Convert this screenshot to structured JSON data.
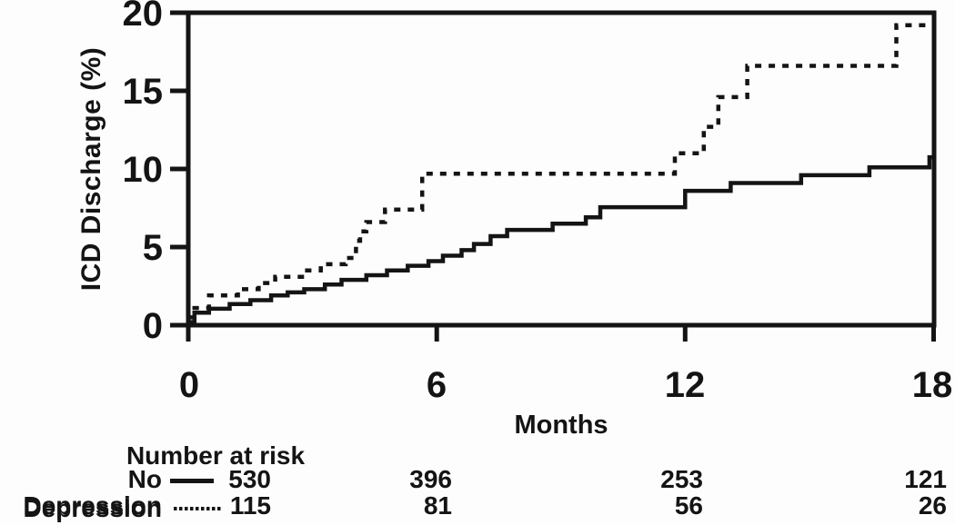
{
  "figure": {
    "background": "#fdfdfd",
    "ink_color": "#141414"
  },
  "chart_data": {
    "type": "line",
    "subtype": "step-function-cumulative-incidence",
    "title": "",
    "xlabel": "Months",
    "ylabel": "ICD Discharge (%)",
    "xlim": [
      0,
      18
    ],
    "ylim": [
      0,
      20
    ],
    "xticks": [
      "0",
      "6",
      "12",
      "18"
    ],
    "yticks": [
      "0",
      "5",
      "10",
      "15",
      "20"
    ],
    "grid": false,
    "legend_position": "below-left (in risk table)",
    "series": [
      {
        "name": "No Depression",
        "line_style": "solid",
        "color": "#141414",
        "points_month_pct": [
          [
            0,
            0.2
          ],
          [
            0.15,
            0.8
          ],
          [
            0.5,
            1.05
          ],
          [
            1,
            1.35
          ],
          [
            1.5,
            1.6
          ],
          [
            2,
            1.9
          ],
          [
            2.4,
            2.1
          ],
          [
            2.8,
            2.3
          ],
          [
            3.3,
            2.6
          ],
          [
            3.7,
            2.9
          ],
          [
            4.3,
            3.2
          ],
          [
            4.8,
            3.5
          ],
          [
            5.3,
            3.8
          ],
          [
            5.8,
            4.1
          ],
          [
            6.15,
            4.45
          ],
          [
            6.6,
            4.8
          ],
          [
            6.9,
            5.2
          ],
          [
            7.3,
            5.7
          ],
          [
            7.7,
            6.1
          ],
          [
            8.8,
            6.5
          ],
          [
            9.6,
            6.9
          ],
          [
            9.95,
            7.55
          ],
          [
            12,
            8.6
          ],
          [
            13.1,
            9.1
          ],
          [
            14.8,
            9.6
          ],
          [
            16.45,
            10.1
          ],
          [
            17.9,
            10.75
          ],
          [
            18,
            10.75
          ]
        ]
      },
      {
        "name": "Depression",
        "line_style": "dotted",
        "color": "#141414",
        "points_month_pct": [
          [
            0,
            0.5
          ],
          [
            0.15,
            1.1
          ],
          [
            0.5,
            1.9
          ],
          [
            1.2,
            2.3
          ],
          [
            1.7,
            2.7
          ],
          [
            2.1,
            3.1
          ],
          [
            2.8,
            3.5
          ],
          [
            3.2,
            3.9
          ],
          [
            3.8,
            4.3
          ],
          [
            4.05,
            5.4
          ],
          [
            4.15,
            6.0
          ],
          [
            4.3,
            6.6
          ],
          [
            4.75,
            7.4
          ],
          [
            5.65,
            9.7
          ],
          [
            11.75,
            11.0
          ],
          [
            12.45,
            12.7
          ],
          [
            12.8,
            14.6
          ],
          [
            13.5,
            16.6
          ],
          [
            17.1,
            19.2
          ],
          [
            17.8,
            19.2
          ]
        ]
      }
    ]
  },
  "risk_table": {
    "heading": "Number at risk",
    "timepoints_months": [
      "0",
      "6",
      "12",
      "18"
    ],
    "rows": [
      {
        "label": "No Depression",
        "marker": "solid-line",
        "counts": [
          "530",
          "396",
          "253",
          "121"
        ]
      },
      {
        "label": "Depression",
        "marker": "dotted-line",
        "counts": [
          "115",
          "81",
          "56",
          "26"
        ]
      }
    ]
  }
}
